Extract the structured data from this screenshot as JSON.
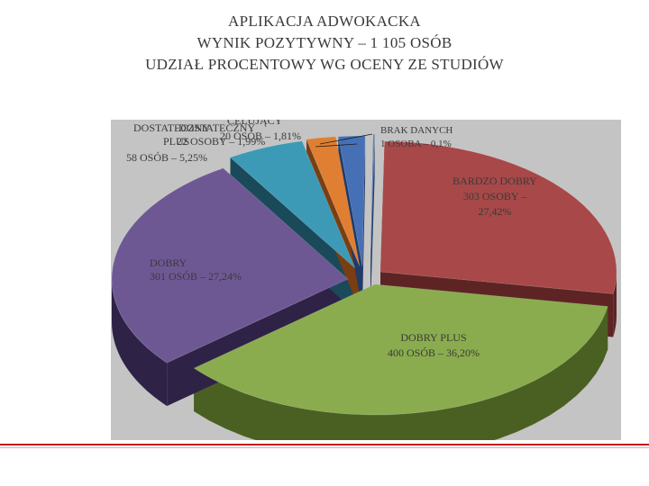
{
  "title_lines": [
    "APLIKACJA ADWOKACKA",
    "WYNIK POZYTYWNY – 1 105 OSÓB",
    "UDZIAŁ PROCENTOWY WG OCENY ZE STUDIÓW"
  ],
  "chart_data": {
    "type": "pie",
    "title": "APLIKACJA ADWOKACKA / WYNIK POZYTYWNY – 1 105 OSÓB / UDZIAŁ PROCENTOWY WG OCENY ZE STUDIÓW",
    "slices": [
      {
        "category": "BARDZO DOBRY",
        "count": 303,
        "percent": 27.42,
        "label_lines": [
          "BARDZO DOBRY",
          "303 OSOBY –",
          "27,42%"
        ],
        "color": "#a84848",
        "side_color": "#5e2424"
      },
      {
        "category": "DOBRY PLUS",
        "count": 400,
        "percent": 36.2,
        "label_lines": [
          "DOBRY PLUS",
          "400 OSÓB – 36,20%"
        ],
        "color": "#8aac4e",
        "side_color": "#4a6022"
      },
      {
        "category": "DOBRY",
        "count": 301,
        "percent": 27.24,
        "label_lines": [
          "DOBRY",
          "301 OSÓB – 27,24%"
        ],
        "color": "#6e5894",
        "side_color": "#2e2246"
      },
      {
        "category": "DOSTATECZNY PLUS",
        "count": 58,
        "percent": 5.25,
        "label_lines": [
          "DOSTATECZNY",
          "PLUS",
          "58 OSÓB – 5,25%"
        ],
        "color": "#3d9ab6",
        "side_color": "#1a4a5a"
      },
      {
        "category": "DOSTATECZNY",
        "count": 22,
        "percent": 1.99,
        "label_lines": [
          "DOSTATECZNY",
          "22 OSOBY – 1,99%"
        ],
        "color": "#e07f32",
        "side_color": "#7a3e12"
      },
      {
        "category": "CELUJĄCY",
        "count": 20,
        "percent": 1.81,
        "label_lines": [
          "CELUJĄCY",
          "20 OSÓB – 1,81%"
        ],
        "color": "#4670b6",
        "side_color": "#213a68"
      },
      {
        "category": "BRAK DANYCH",
        "count": 1,
        "percent": 0.1,
        "label_lines": [
          "BRAK DANYCH",
          "1 OSOBA – 0,1%"
        ],
        "color": "#4a7ac0",
        "side_color": "#223c66"
      }
    ],
    "legend": "none"
  }
}
